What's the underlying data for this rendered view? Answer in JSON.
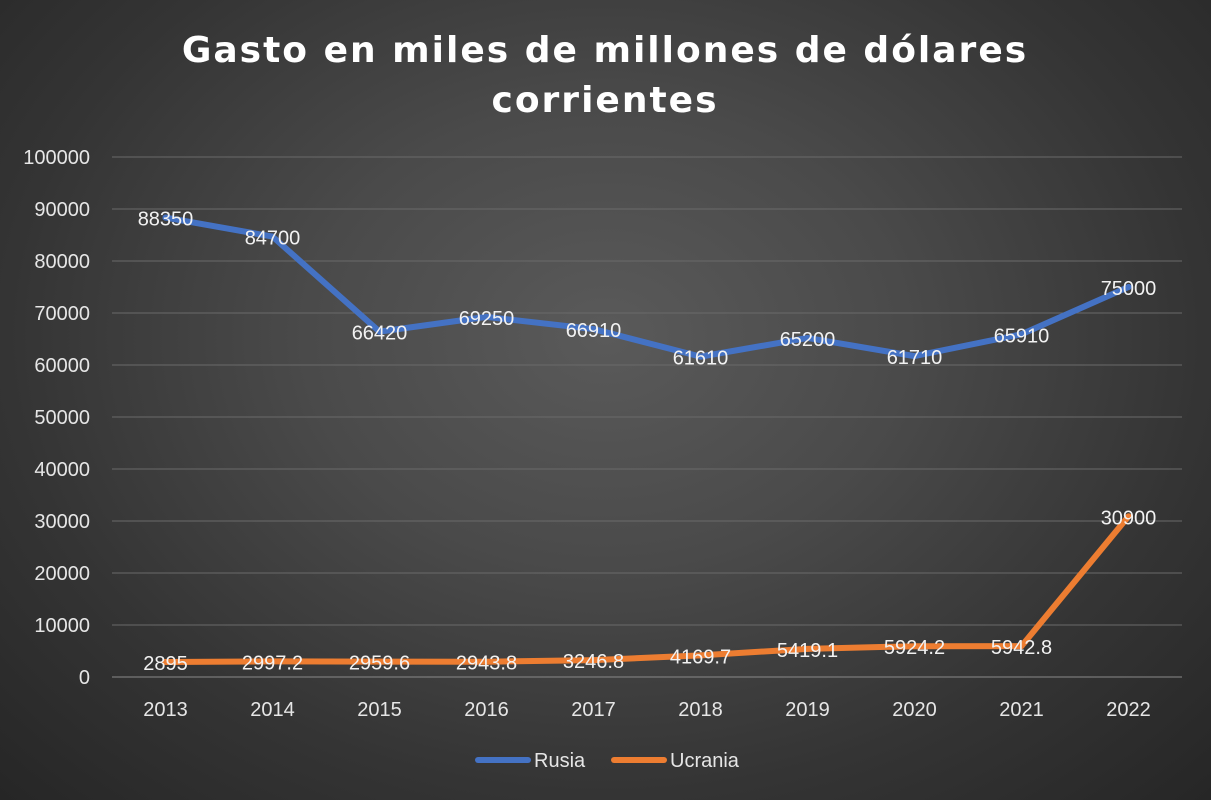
{
  "chart_data": {
    "type": "line",
    "title_lines": [
      "Gasto en miles de millones de dólares",
      "corrientes"
    ],
    "categories": [
      "2013",
      "2014",
      "2015",
      "2016",
      "2017",
      "2018",
      "2019",
      "2020",
      "2021",
      "2022"
    ],
    "y_ticks": [
      "0",
      "10000",
      "20000",
      "30000",
      "40000",
      "50000",
      "60000",
      "70000",
      "80000",
      "90000",
      "100000"
    ],
    "ylim": [
      0,
      100000
    ],
    "grid": true,
    "legend_position": "bottom",
    "series": [
      {
        "name": "Rusia",
        "color": "#4472C4",
        "values": [
          88350,
          84700,
          66420,
          69250,
          66910,
          61610,
          65200,
          61710,
          65910,
          75000
        ],
        "labels": [
          "88350",
          "84700",
          "66420",
          "69250",
          "66910",
          "61610",
          "65200",
          "61710",
          "65910",
          "75000"
        ]
      },
      {
        "name": "Ucrania",
        "color": "#ED7D31",
        "values": [
          2895,
          2997.2,
          2959.6,
          2943.8,
          3246.8,
          4169.7,
          5419.1,
          5924.2,
          5942.8,
          30900
        ],
        "labels": [
          "2895",
          "2997.2",
          "2959.6",
          "2943.8",
          "3246.8",
          "4169.7",
          "5419.1",
          "5924.2",
          "5942.8",
          "30900"
        ]
      }
    ]
  }
}
